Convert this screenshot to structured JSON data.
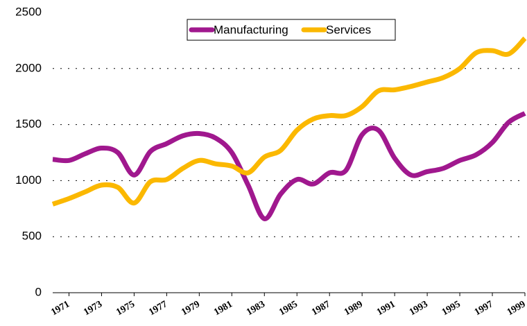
{
  "chart_data": {
    "type": "line",
    "x": [
      1970,
      1971,
      1972,
      1973,
      1974,
      1975,
      1976,
      1977,
      1978,
      1979,
      1980,
      1981,
      1982,
      1983,
      1984,
      1985,
      1986,
      1987,
      1988,
      1989,
      1990,
      1991,
      1992,
      1993,
      1994,
      1995,
      1996,
      1997,
      1998,
      1999
    ],
    "series": [
      {
        "name": "Manufacturing",
        "color": "#a0188e",
        "values": [
          1190,
          1180,
          1240,
          1290,
          1250,
          1050,
          1260,
          1330,
          1400,
          1420,
          1380,
          1250,
          960,
          660,
          880,
          1010,
          970,
          1070,
          1090,
          1410,
          1450,
          1200,
          1050,
          1080,
          1110,
          1180,
          1230,
          1340,
          1520,
          1600
        ]
      },
      {
        "name": "Services",
        "color": "#fbb800",
        "values": [
          790,
          840,
          900,
          960,
          940,
          800,
          990,
          1010,
          1110,
          1180,
          1150,
          1130,
          1070,
          1210,
          1270,
          1450,
          1550,
          1580,
          1580,
          1660,
          1800,
          1810,
          1840,
          1880,
          1920,
          2000,
          2140,
          2160,
          2130,
          2270
        ]
      }
    ],
    "xlim": [
      1970,
      1999
    ],
    "xticks": [
      1971,
      1973,
      1975,
      1977,
      1979,
      1981,
      1983,
      1985,
      1987,
      1989,
      1991,
      1993,
      1995,
      1997,
      1999
    ],
    "ylim": [
      0,
      2500
    ],
    "yticks": [
      0,
      500,
      1000,
      1500,
      2000,
      2500
    ],
    "grid": true,
    "legend": "top"
  }
}
